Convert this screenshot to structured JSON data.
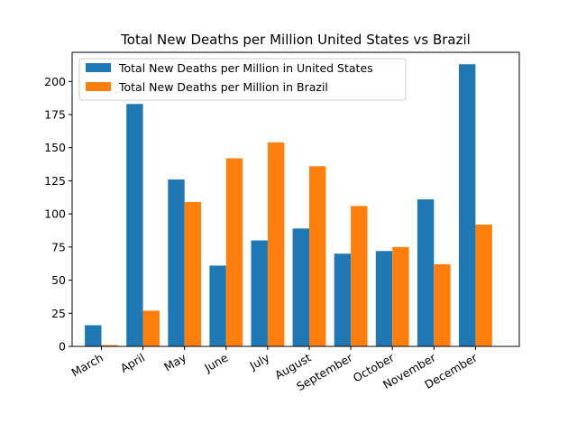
{
  "chart_data": {
    "type": "bar",
    "title": "Total New Deaths per Million United States vs Brazil",
    "xlabel": "",
    "ylabel": "",
    "categories": [
      "March",
      "April",
      "May",
      "June",
      "July",
      "August",
      "September",
      "October",
      "November",
      "December"
    ],
    "series": [
      {
        "name": "Total New Deaths per Million in United States",
        "color": "#1f77b4",
        "values": [
          16,
          183,
          126,
          61,
          80,
          89,
          70,
          72,
          111,
          213
        ]
      },
      {
        "name": "Total New Deaths per Million in Brazil",
        "color": "#ff7f0e",
        "values": [
          1,
          27,
          109,
          142,
          154,
          136,
          106,
          75,
          62,
          92
        ]
      }
    ],
    "ylim": [
      0,
      222
    ],
    "yticks": [
      0,
      25,
      50,
      75,
      100,
      125,
      150,
      175,
      200
    ],
    "grid": false,
    "legend_position": "top-left"
  }
}
